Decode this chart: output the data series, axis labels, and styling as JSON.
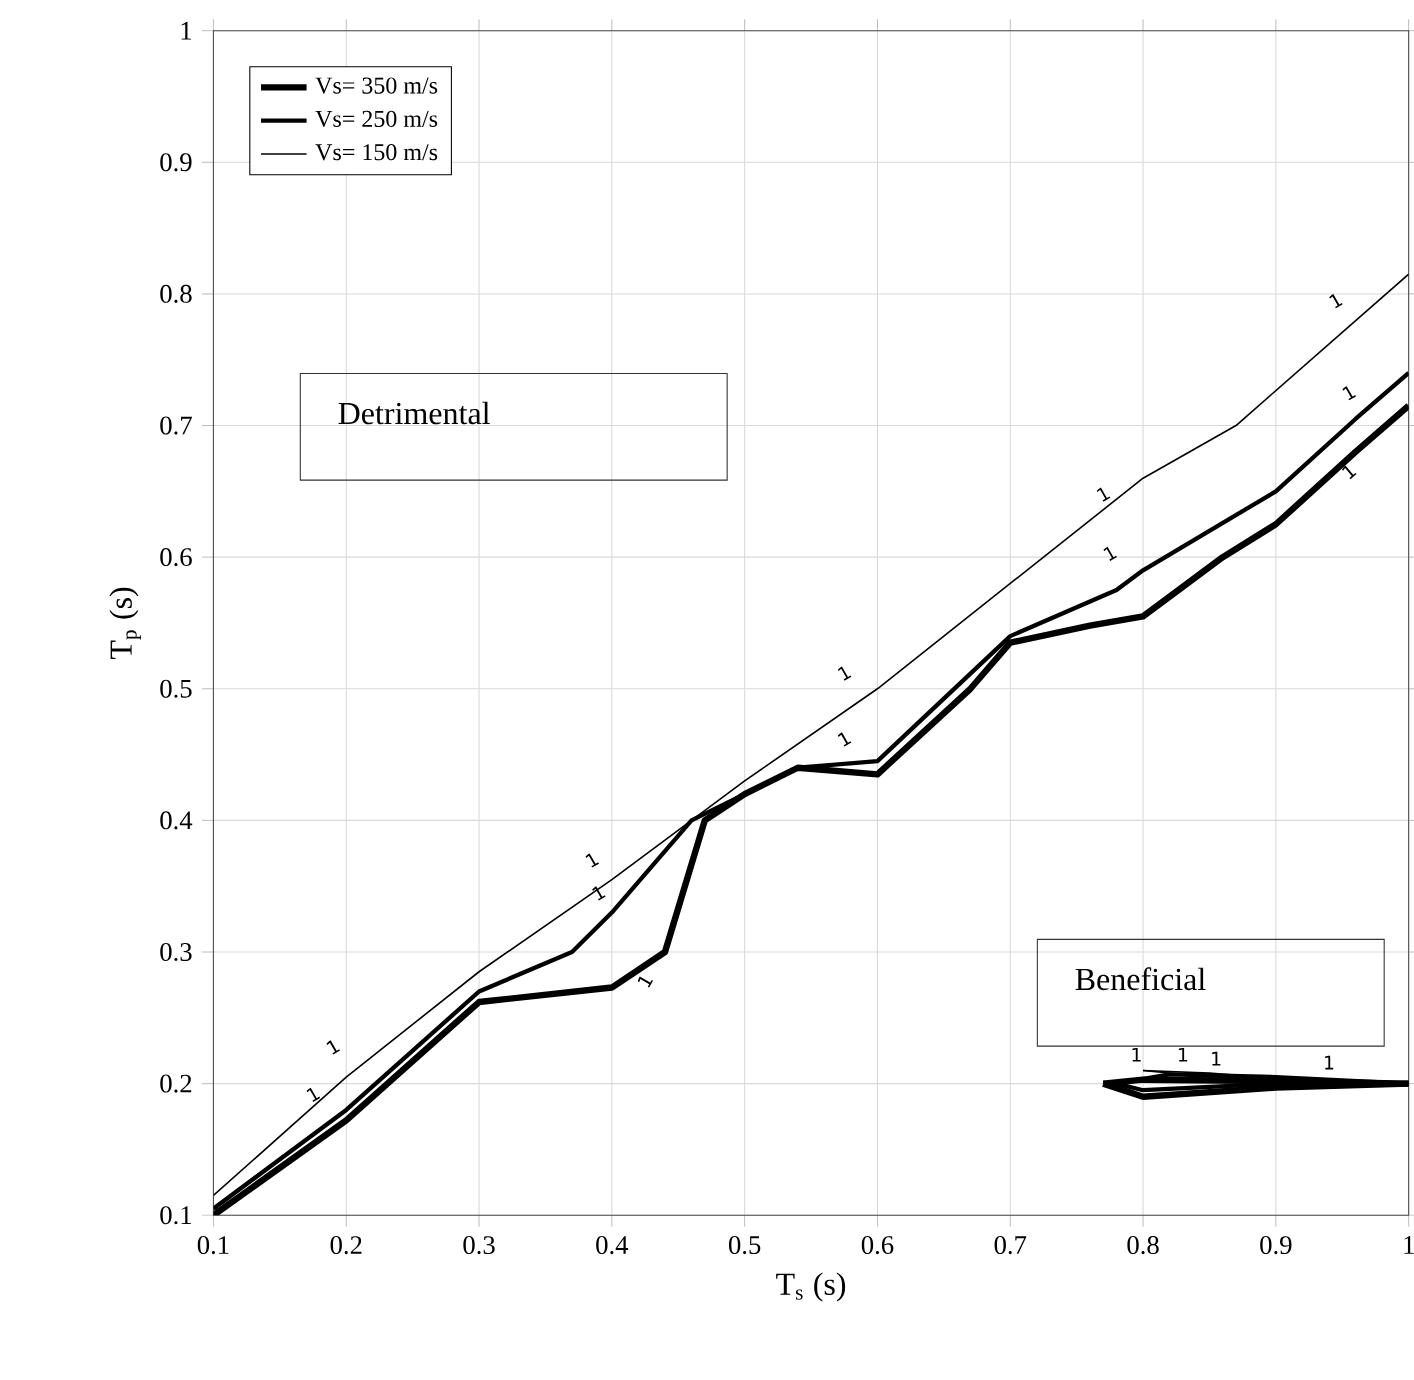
{
  "chart_data": {
    "type": "line",
    "xlabel": "T$_{s}$ (s)",
    "ylabel": "T$_{p}$ (s)",
    "xlim": [
      0.1,
      1
    ],
    "ylim": [
      0.1,
      1
    ],
    "xticks": [
      0.1,
      0.2,
      0.3,
      0.4,
      0.5,
      0.6,
      0.7,
      0.8,
      0.9,
      1
    ],
    "yticks": [
      0.1,
      0.2,
      0.3,
      0.4,
      0.5,
      0.6,
      0.7,
      0.8,
      0.9,
      1
    ],
    "grid": true,
    "legend": "top left",
    "marker": "none",
    "line_style": "solid",
    "series": [
      {
        "name": "Vs= 350 m/s",
        "color": "#000000",
        "x": [
          0.1,
          0.2,
          0.3,
          0.4,
          0.44,
          0.47,
          0.5,
          0.54,
          0.6,
          0.67,
          0.7,
          0.76,
          0.8,
          0.86,
          0.9,
          0.96,
          1.0
        ],
        "values": [
          0.1,
          0.172,
          0.262,
          0.273,
          0.3,
          0.4,
          0.42,
          0.44,
          0.435,
          0.5,
          0.535,
          0.548,
          0.555,
          0.6,
          0.625,
          0.68,
          0.715
        ]
      },
      {
        "name": "Vs= 250 m/s",
        "color": "#000000",
        "x": [
          0.1,
          0.2,
          0.3,
          0.37,
          0.4,
          0.46,
          0.5,
          0.54,
          0.6,
          0.7,
          0.78,
          0.8,
          0.9,
          0.96,
          1.0
        ],
        "values": [
          0.105,
          0.18,
          0.27,
          0.3,
          0.33,
          0.4,
          0.42,
          0.44,
          0.445,
          0.54,
          0.575,
          0.59,
          0.65,
          0.705,
          0.74
        ]
      },
      {
        "name": "Vs= 150 m/s",
        "color": "#000000",
        "x": [
          0.1,
          0.2,
          0.3,
          0.4,
          0.5,
          0.6,
          0.7,
          0.8,
          0.87,
          1.0
        ],
        "values": [
          0.115,
          0.205,
          0.285,
          0.355,
          0.43,
          0.5,
          0.58,
          0.66,
          0.7,
          0.815
        ]
      },
      {
        "color": "#000000",
        "x": [
          0.77,
          0.8,
          0.9,
          1.0
        ],
        "values": [
          0.2,
          0.19,
          0.197,
          0.2
        ]
      },
      {
        "color": "#000000",
        "x": [
          0.77,
          0.8,
          0.9,
          1.0
        ],
        "values": [
          0.2,
          0.203,
          0.202,
          0.2
        ]
      },
      {
        "color": "#000000",
        "x": [
          0.78,
          0.8,
          0.9,
          1.0
        ],
        "values": [
          0.2,
          0.195,
          0.2,
          0.2
        ]
      },
      {
        "color": "#000000",
        "x": [
          0.78,
          0.82,
          0.9,
          1.0
        ],
        "values": [
          0.2,
          0.207,
          0.205,
          0.2
        ]
      },
      {
        "color": "#000000",
        "x": [
          0.8,
          0.85,
          0.95
        ],
        "values": [
          0.21,
          0.205,
          0.2
        ]
      },
      {
        "color": "#000000",
        "x": [
          0.8,
          0.85,
          0.95
        ],
        "values": [
          0.21,
          0.208,
          0.2
        ]
      }
    ],
    "annotations": [
      "Detrimental",
      "Beneficial",
      "1",
      "1",
      "1",
      "1",
      "1",
      "1",
      "1",
      "1",
      "1",
      "1",
      "1",
      "1",
      "1",
      "1",
      "1",
      "1"
    ]
  }
}
